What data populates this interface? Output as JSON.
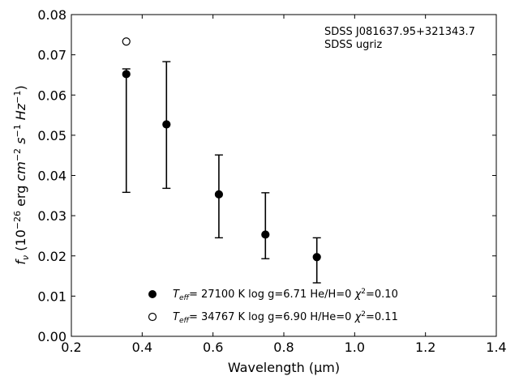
{
  "chart_data": {
    "type": "scatter",
    "xlabel": "Wavelength (μm)",
    "ylabel_html": "fν (10⁻²⁶ erg cm⁻² s⁻¹ Hz⁻¹)",
    "xlim": [
      0.2,
      1.4
    ],
    "ylim": [
      0.0,
      0.08
    ],
    "x_ticks": [
      "0.2",
      "0.4",
      "0.6",
      "0.8",
      "1.0",
      "1.2",
      "1.4"
    ],
    "y_ticks": [
      "0.00",
      "0.01",
      "0.02",
      "0.03",
      "0.04",
      "0.05",
      "0.06",
      "0.07",
      "0.08"
    ],
    "grid": false,
    "annotations": [
      "SDSS J081637.95+321343.7",
      "SDSS ugriz"
    ],
    "series": [
      {
        "name": "Teff= 27100 K  log g=6.71  He/H=0  χ²=0.10",
        "marker": "filled-circle",
        "x": [
          0.3551,
          0.4686,
          0.6166,
          0.748,
          0.8932
        ],
        "y": [
          0.0652,
          0.0527,
          0.0353,
          0.0253,
          0.0197
        ],
        "y_err_low": [
          0.0358,
          0.0368,
          0.0245,
          0.0193,
          0.0133
        ],
        "y_err_high": [
          0.0665,
          0.0683,
          0.0451,
          0.0357,
          0.0245
        ]
      },
      {
        "name": "Teff= 34767 K  log g=6.90  H/He=0  χ²=0.11",
        "marker": "open-circle",
        "x": [
          0.3551
        ],
        "y": [
          0.0733
        ]
      }
    ],
    "legend": [
      {
        "teff": "= 27100 K  log g=6.71  He/H=0  ",
        "chi": "=0.10"
      },
      {
        "teff": "= 34767 K  log g=6.90  H/He=0  ",
        "chi": "=0.11"
      }
    ],
    "colors": {
      "marker": "#000000",
      "axes": "#000000"
    }
  }
}
